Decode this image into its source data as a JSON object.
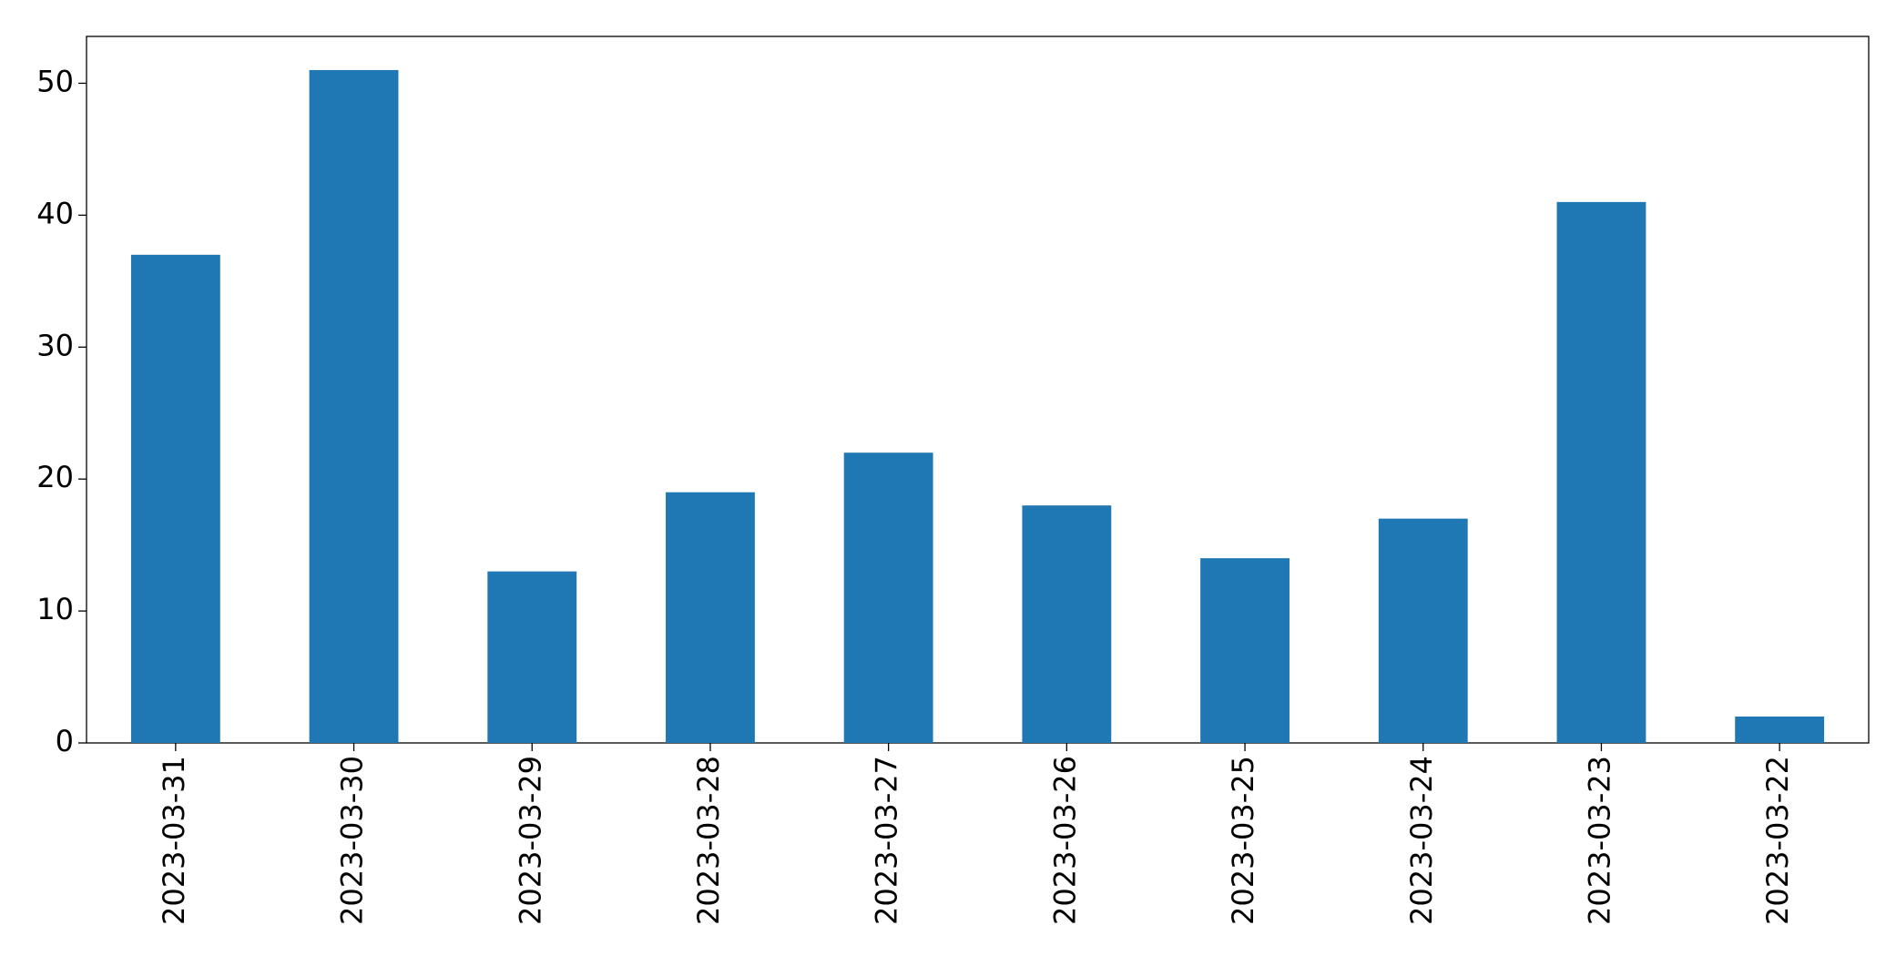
{
  "chart_data": {
    "type": "bar",
    "categories": [
      "2023-03-31",
      "2023-03-30",
      "2023-03-29",
      "2023-03-28",
      "2023-03-27",
      "2023-03-26",
      "2023-03-25",
      "2023-03-24",
      "2023-03-23",
      "2023-03-22"
    ],
    "values": [
      37,
      51,
      13,
      19,
      22,
      18,
      14,
      17,
      41,
      2
    ],
    "color": "#1f77b4",
    "ylim": [
      0,
      53.55
    ],
    "yticks": [
      0,
      10,
      20,
      30,
      40,
      50
    ],
    "grid": false
  }
}
